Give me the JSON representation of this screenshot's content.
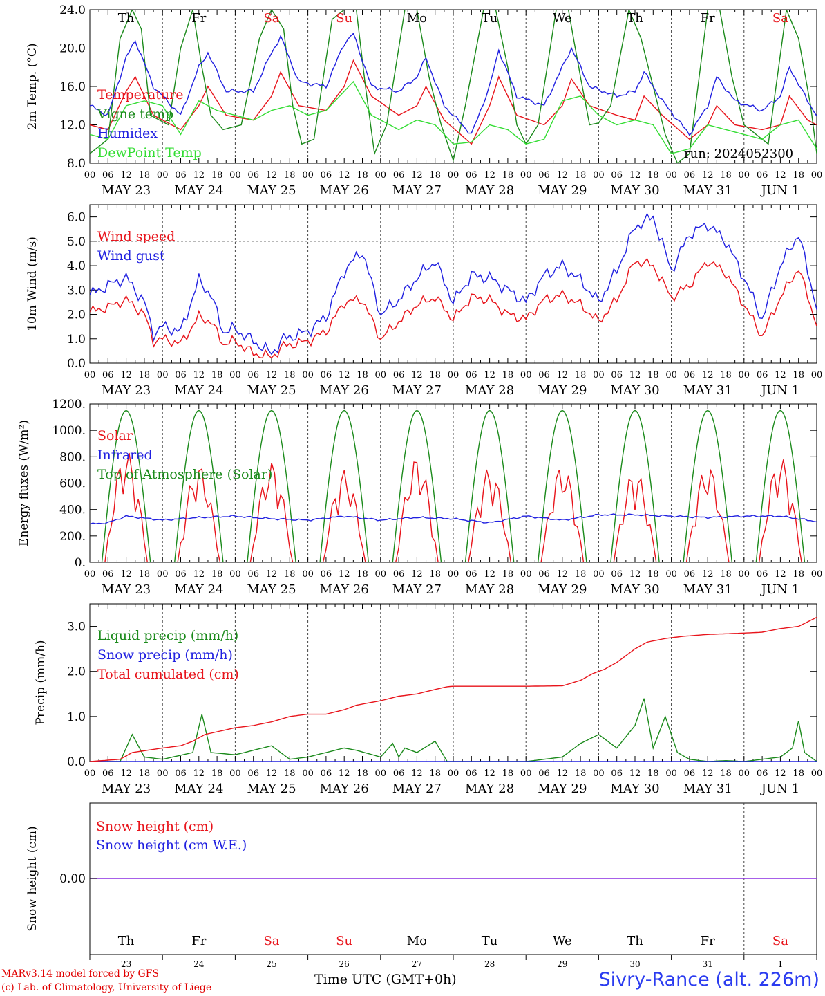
{
  "days": [
    {
      "dow": "Th",
      "date": "MAY 23",
      "num": "23",
      "weekend": false
    },
    {
      "dow": "Fr",
      "date": "MAY 24",
      "num": "24",
      "weekend": false
    },
    {
      "dow": "Sa",
      "date": "MAY 25",
      "num": "25",
      "weekend": true
    },
    {
      "dow": "Su",
      "date": "MAY 26",
      "num": "26",
      "weekend": true
    },
    {
      "dow": "Mo",
      "date": "MAY 27",
      "num": "27",
      "weekend": false
    },
    {
      "dow": "Tu",
      "date": "MAY 28",
      "num": "28",
      "weekend": false
    },
    {
      "dow": "We",
      "date": "MAY 29",
      "num": "29",
      "weekend": false
    },
    {
      "dow": "Th",
      "date": "MAY 30",
      "num": "30",
      "weekend": false
    },
    {
      "dow": "Fr",
      "date": "MAY 31",
      "num": "31",
      "weekend": false
    },
    {
      "dow": "Sa",
      "date": "JUN  1",
      "num": "1",
      "weekend": true
    }
  ],
  "hour_ticks": [
    "00",
    "06",
    "12",
    "18"
  ],
  "hour_ticks_end": "00",
  "colors": {
    "red": "#e8141b",
    "green": "#1b8a1b",
    "blue": "#2020e0",
    "lightgreen": "#33dd33",
    "purple": "#8a2be2",
    "weekend": "#e8141b"
  },
  "footer": {
    "credit1": "MARv3.14 model forced by GFS",
    "credit2": "(c) Lab. of Climatology, University of Liege",
    "xtitle": "Time UTC (GMT+0h)",
    "station": "Sivry-Rance (alt. 226m)"
  },
  "chart_data": [
    {
      "type": "line",
      "ylabel": "2m Temp. (°C)",
      "ylim": [
        8,
        24
      ],
      "yticks": [
        "8.0",
        "12.0",
        "16.0",
        "20.0",
        "24.0"
      ],
      "legend_placement": "left",
      "annotation": "run: 2024052300",
      "series": [
        {
          "name": "Temperature",
          "color": "red",
          "hours": [
            0,
            6,
            12,
            15,
            21,
            30,
            36,
            39,
            45,
            54,
            60,
            63,
            69,
            78,
            84,
            87,
            93,
            102,
            108,
            111,
            117,
            126,
            132,
            135,
            141,
            150,
            156,
            159,
            165,
            174,
            180,
            183,
            189,
            198,
            204,
            207,
            213,
            222,
            228,
            231,
            237,
            240
          ],
          "values": [
            12,
            11.5,
            15.5,
            17,
            13,
            11.5,
            14,
            16,
            13,
            12.5,
            15,
            17.5,
            14,
            13.5,
            16,
            18.7,
            15,
            13,
            14,
            16,
            12.5,
            10,
            14,
            17,
            13,
            12,
            14,
            16.8,
            14,
            13,
            12.5,
            15,
            13,
            10.5,
            12,
            14,
            12,
            11.5,
            12,
            15,
            12.5,
            12
          ]
        },
        {
          "name": "Vigne temp",
          "color": "green",
          "hours": [
            0,
            6,
            10,
            14,
            17,
            20,
            26,
            30,
            34,
            37,
            40,
            44,
            50,
            56,
            60,
            64,
            67,
            70,
            74,
            80,
            84,
            88,
            91,
            94,
            98,
            104,
            108,
            112,
            116,
            120,
            124,
            130,
            134,
            138,
            141,
            144,
            148,
            154,
            158,
            162,
            165,
            168,
            172,
            178,
            182,
            186,
            190,
            194,
            198,
            204,
            208,
            212,
            216,
            220,
            224,
            230,
            234,
            238,
            240
          ],
          "values": [
            9,
            10.5,
            21,
            24,
            22,
            13,
            12,
            20,
            24,
            18,
            13,
            11.5,
            12,
            21,
            24,
            22,
            14,
            10,
            10.5,
            23,
            24,
            24,
            16,
            9,
            12,
            24,
            24,
            17,
            12,
            8.3,
            14,
            24,
            24,
            18,
            12,
            10,
            12,
            24,
            24,
            17,
            12,
            12.2,
            14,
            24,
            21,
            16,
            11,
            8,
            9,
            24,
            24,
            17,
            12,
            11,
            10,
            24,
            21,
            14,
            9
          ]
        },
        {
          "name": "Humidex",
          "color": "blue",
          "hours": [
            0,
            6,
            12,
            15,
            21,
            30,
            36,
            39,
            45,
            54,
            60,
            63,
            69,
            78,
            84,
            87,
            93,
            102,
            108,
            111,
            117,
            126,
            132,
            135,
            141,
            150,
            156,
            159,
            165,
            174,
            180,
            183,
            189,
            198,
            204,
            207,
            213,
            222,
            228,
            231,
            237,
            240
          ],
          "values": [
            14,
            13,
            19,
            20.8,
            16,
            13,
            18,
            19.5,
            15.5,
            15.5,
            19.5,
            21.2,
            16.5,
            16,
            20.5,
            21.5,
            16,
            15.5,
            17,
            19,
            14,
            11,
            16,
            19.8,
            15,
            14,
            18,
            20,
            16,
            15,
            15.5,
            17.5,
            14.5,
            11,
            14,
            17,
            14.5,
            13.5,
            15,
            18,
            14.5,
            13
          ]
        },
        {
          "name": "DewPoint Temp",
          "color": "lightgreen",
          "hours": [
            0,
            6,
            12,
            18,
            24,
            30,
            36,
            42,
            48,
            54,
            60,
            66,
            72,
            78,
            84,
            87,
            93,
            102,
            108,
            114,
            120,
            126,
            132,
            138,
            144,
            150,
            156,
            162,
            168,
            174,
            180,
            186,
            192,
            198,
            204,
            210,
            216,
            222,
            228,
            234,
            240
          ],
          "values": [
            11,
            10.5,
            14,
            14.5,
            14,
            11,
            14.5,
            13.5,
            13,
            12.5,
            13.5,
            14,
            13,
            13.5,
            15.5,
            16.5,
            13,
            11.5,
            12.5,
            12,
            10,
            10.2,
            12,
            11.5,
            10,
            10.5,
            14.5,
            15,
            13,
            12,
            12.5,
            12,
            9,
            9.5,
            12,
            11.5,
            11,
            10.5,
            12,
            12.5,
            9.5
          ]
        }
      ]
    },
    {
      "type": "line",
      "ylabel": "10m Wind (m/s)",
      "ylim": [
        0,
        6.5
      ],
      "yticks": [
        "0.0",
        "1.0",
        "2.0",
        "3.0",
        "4.0",
        "5.0",
        "6.0"
      ],
      "reference_line": 5.0,
      "series": [
        {
          "name": "Wind speed",
          "color": "red",
          "hours": [
            0,
            6,
            12,
            18,
            21,
            24,
            30,
            36,
            40,
            44,
            48,
            54,
            60,
            64,
            72,
            78,
            84,
            90,
            96,
            102,
            108,
            114,
            120,
            126,
            132,
            138,
            144,
            150,
            156,
            162,
            168,
            174,
            180,
            186,
            192,
            198,
            204,
            210,
            216,
            222,
            228,
            234,
            240
          ],
          "values": [
            2.1,
            2.3,
            2.6,
            2.0,
            0.9,
            1.0,
            0.8,
            1.9,
            1.7,
            0.8,
            0.9,
            0.4,
            0.25,
            0.7,
            0.9,
            1.3,
            2.5,
            2.6,
            1.0,
            1.7,
            2.4,
            2.7,
            1.8,
            2.7,
            2.6,
            2.0,
            1.8,
            2.6,
            2.8,
            2.4,
            1.7,
            2.6,
            4.2,
            4.0,
            2.7,
            3.2,
            4.2,
            3.7,
            2.4,
            1.1,
            2.7,
            3.9,
            1.6
          ]
        },
        {
          "name": "Wind gust",
          "color": "blue",
          "hours": [
            0,
            6,
            12,
            18,
            21,
            24,
            30,
            36,
            40,
            44,
            48,
            54,
            60,
            64,
            72,
            78,
            84,
            90,
            96,
            102,
            108,
            114,
            120,
            126,
            132,
            138,
            144,
            150,
            156,
            162,
            168,
            174,
            180,
            186,
            192,
            198,
            204,
            210,
            216,
            222,
            228,
            234,
            240
          ],
          "values": [
            2.8,
            3.2,
            3.5,
            2.5,
            1.2,
            1.5,
            1.3,
            3.4,
            2.8,
            1.3,
            1.4,
            0.9,
            0.4,
            1.0,
            1.3,
            1.9,
            3.8,
            4.6,
            2.0,
            2.6,
            3.5,
            4.2,
            2.5,
            3.6,
            3.5,
            3.0,
            2.5,
            3.6,
            4.0,
            3.4,
            2.5,
            3.8,
            5.6,
            6.0,
            3.8,
            5.3,
            5.7,
            5.0,
            3.5,
            1.8,
            4.0,
            5.3,
            2.3
          ]
        }
      ]
    },
    {
      "type": "line",
      "ylabel": "Energy fluxes (W/m²)",
      "ylim": [
        0,
        1200
      ],
      "yticks": [
        "0.",
        "200.",
        "400.",
        "600.",
        "800.",
        "1000.",
        "1200."
      ],
      "series": [
        {
          "name": "Solar",
          "color": "red",
          "peaks": [
            850,
            740,
            760,
            700,
            800,
            720,
            740,
            700,
            740,
            800
          ]
        },
        {
          "name": "Infrared",
          "color": "blue",
          "hours": [
            0,
            6,
            12,
            24,
            36,
            48,
            60,
            72,
            84,
            96,
            108,
            120,
            132,
            144,
            156,
            168,
            180,
            192,
            204,
            216,
            228,
            240
          ],
          "values": [
            290,
            300,
            350,
            320,
            340,
            350,
            330,
            320,
            350,
            320,
            340,
            330,
            300,
            350,
            320,
            360,
            360,
            350,
            340,
            350,
            350,
            310
          ]
        },
        {
          "name": "Top of Atmosphere (Solar)",
          "color": "green",
          "peak": 1150
        }
      ]
    },
    {
      "type": "line",
      "ylabel": "Precip (mm/h)",
      "ylim": [
        0,
        3.5
      ],
      "yticks": [
        "0.0",
        "1.0",
        "2.0",
        "3.0"
      ],
      "series": [
        {
          "name": "Liquid precip (mm/h)",
          "color": "green",
          "hours": [
            0,
            10,
            14,
            18,
            24,
            34,
            37,
            40,
            48,
            60,
            66,
            72,
            84,
            88,
            96,
            100,
            102,
            104,
            108,
            114,
            118,
            120,
            126,
            132,
            144,
            156,
            162,
            168,
            174,
            180,
            183,
            186,
            190,
            194,
            198,
            204,
            210,
            216,
            222,
            228,
            232,
            234,
            236,
            240
          ],
          "values": [
            0,
            0,
            0.6,
            0.1,
            0.05,
            0.2,
            1.05,
            0.2,
            0.15,
            0.35,
            0.05,
            0.1,
            0.3,
            0.25,
            0.1,
            0.4,
            0.1,
            0.3,
            0.2,
            0.45,
            0,
            0,
            0,
            0,
            0,
            0.1,
            0.4,
            0.6,
            0.3,
            0.8,
            1.4,
            0.3,
            1,
            0.2,
            0.05,
            0,
            0.02,
            0,
            0.05,
            0.1,
            0.3,
            0.9,
            0.2,
            0
          ]
        },
        {
          "name": "Snow precip (mm/h)",
          "color": "blue",
          "hours": [
            0,
            240
          ],
          "values": [
            0,
            0
          ]
        },
        {
          "name": "Total cumulated (cm)",
          "color": "red",
          "hours": [
            0,
            10,
            14,
            24,
            30,
            34,
            38,
            48,
            54,
            60,
            66,
            72,
            78,
            84,
            88,
            96,
            102,
            108,
            114,
            118,
            120,
            132,
            144,
            156,
            162,
            166,
            170,
            174,
            180,
            184,
            190,
            196,
            204,
            216,
            222,
            228,
            234,
            240
          ],
          "values": [
            0,
            0.05,
            0.2,
            0.3,
            0.35,
            0.45,
            0.6,
            0.75,
            0.8,
            0.88,
            1.0,
            1.05,
            1.05,
            1.15,
            1.25,
            1.35,
            1.45,
            1.5,
            1.6,
            1.66,
            1.67,
            1.67,
            1.67,
            1.68,
            1.8,
            1.95,
            2.05,
            2.2,
            2.5,
            2.65,
            2.73,
            2.78,
            2.82,
            2.85,
            2.87,
            2.95,
            3.0,
            3.2
          ]
        }
      ]
    },
    {
      "type": "line",
      "ylabel": "Snow height (cm)",
      "yticks": [
        "0.00"
      ],
      "series": [
        {
          "name": "Snow height (cm)",
          "color": "red",
          "hours": [
            0,
            240
          ],
          "values": [
            0,
            0
          ]
        },
        {
          "name": "Snow height (cm W.E.)",
          "color": "blue",
          "hours": [
            0,
            240
          ],
          "values": [
            0,
            0
          ]
        }
      ]
    }
  ]
}
